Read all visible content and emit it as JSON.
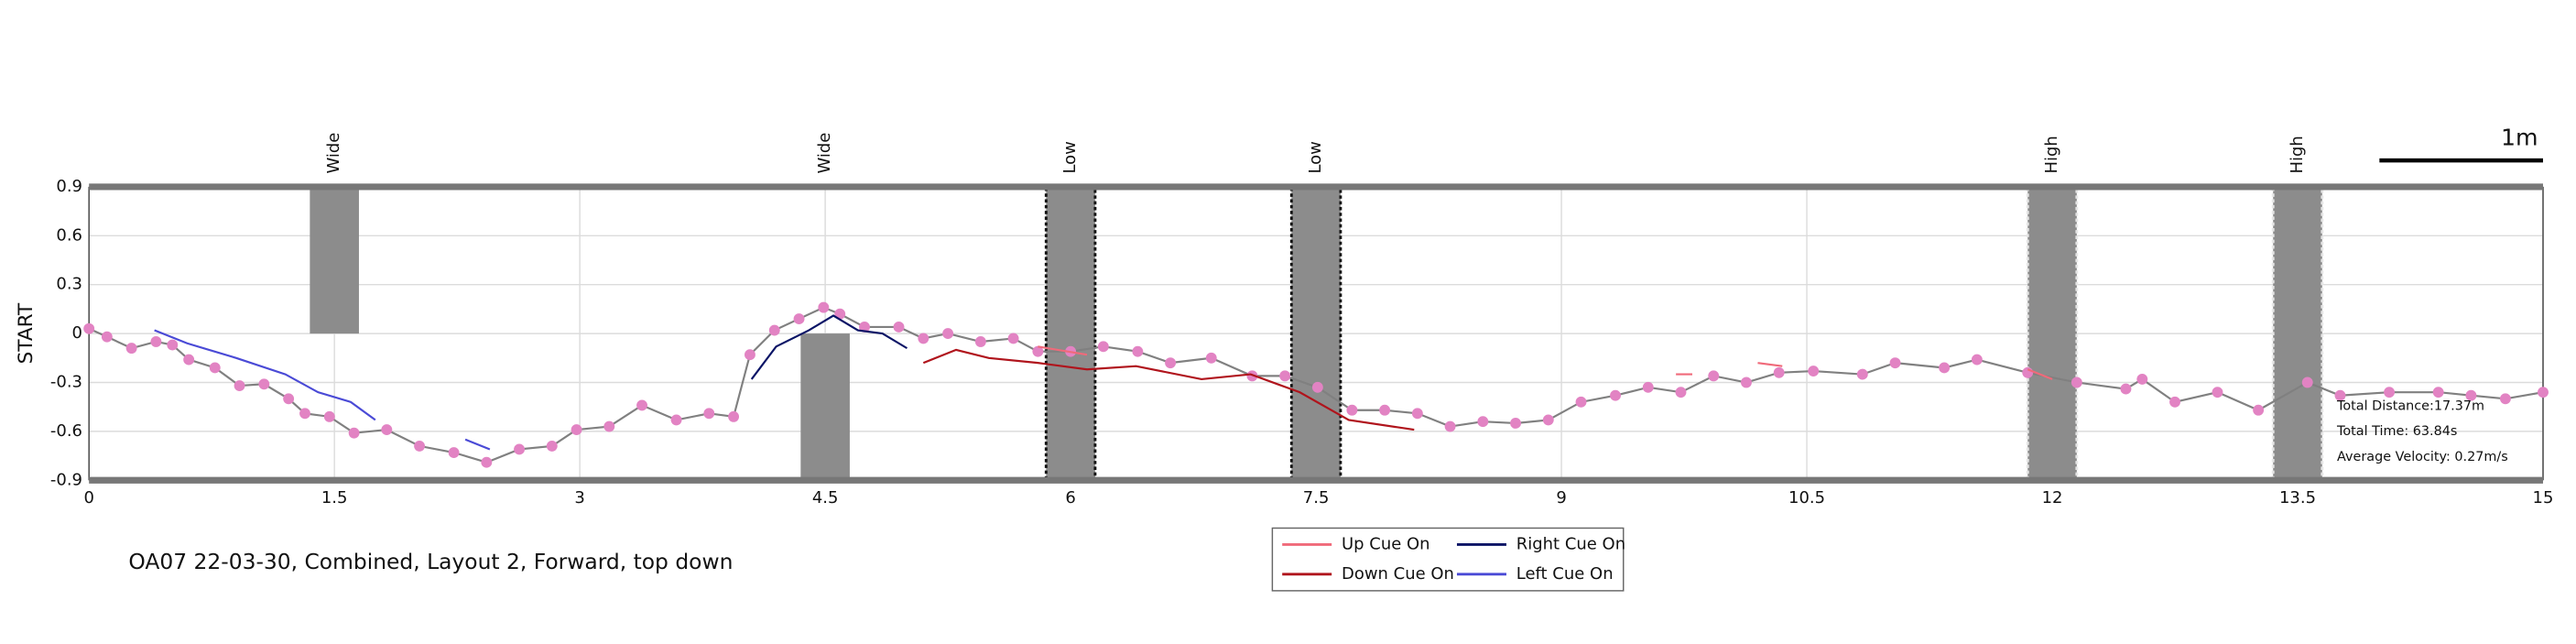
{
  "chart_data": {
    "type": "line",
    "title": "OA07 22-03-30, Combined, Layout 2, Forward, top down",
    "ylabel": "START",
    "xlim": [
      0,
      15
    ],
    "ylim": [
      -0.9,
      0.9
    ],
    "xticks": [
      0,
      1.5,
      3,
      4.5,
      6,
      7.5,
      9,
      10.5,
      12,
      13.5,
      15
    ],
    "yticks": [
      0.9,
      0.6,
      0.3,
      0,
      -0.3,
      -0.6,
      -0.9
    ],
    "grid": true,
    "legend": "bottom",
    "series": [
      {
        "color": "#808080",
        "marker_color": "#e283c3",
        "x": [
          0,
          0.11,
          0.26,
          0.41,
          0.51,
          0.61,
          0.77,
          0.92,
          1.07,
          1.22,
          1.32,
          1.47,
          1.62,
          1.82,
          2.02,
          2.23,
          2.43,
          2.63,
          2.83,
          2.98,
          3.18,
          3.38,
          3.59,
          3.79,
          3.94,
          4.04,
          4.19,
          4.34,
          4.49,
          4.59,
          4.74,
          4.95,
          5.1,
          5.25,
          5.45,
          5.65,
          5.8,
          6,
          6.2,
          6.41,
          6.61,
          6.86,
          7.11,
          7.31,
          7.51,
          7.72,
          7.92,
          8.12,
          8.32,
          8.52,
          8.72,
          8.92,
          9.12,
          9.33,
          9.53,
          9.73,
          9.93,
          10.13,
          10.33,
          10.54,
          10.84,
          11.04,
          11.34,
          11.54,
          11.85,
          12.15,
          12.45,
          12.55,
          12.75,
          13.01,
          13.26,
          13.56,
          13.76,
          14.06,
          14.36,
          14.56,
          14.77,
          15
        ],
        "values": [
          0.03,
          -0.02,
          -0.09,
          -0.05,
          -0.07,
          -0.16,
          -0.21,
          -0.32,
          -0.31,
          -0.4,
          -0.49,
          -0.51,
          -0.61,
          -0.59,
          -0.69,
          -0.73,
          -0.79,
          -0.71,
          -0.69,
          -0.59,
          -0.57,
          -0.44,
          -0.53,
          -0.49,
          -0.51,
          -0.13,
          0.02,
          0.09,
          0.16,
          0.12,
          0.04,
          0.04,
          -0.03,
          0,
          -0.05,
          -0.03,
          -0.11,
          -0.11,
          -0.08,
          -0.11,
          -0.18,
          -0.15,
          -0.26,
          -0.26,
          -0.33,
          -0.47,
          -0.47,
          -0.49,
          -0.57,
          -0.54,
          -0.55,
          -0.53,
          -0.42,
          -0.38,
          -0.33,
          -0.36,
          -0.26,
          -0.3,
          -0.24,
          -0.23,
          -0.25,
          -0.18,
          -0.21,
          -0.16,
          -0.24,
          -0.3,
          -0.34,
          -0.28,
          -0.42,
          -0.36,
          -0.47,
          -0.3,
          -0.38,
          -0.36,
          -0.36,
          -0.38,
          -0.4,
          -0.36
        ]
      },
      {
        "name": "Up Cue On",
        "color": "#f06a7a",
        "x": [
          5.8,
          6.1,
          6.2,
          9.7,
          9.8,
          9.9,
          10.2,
          10.35,
          10.4,
          11.85,
          12.0
        ],
        "values": [
          -0.08,
          -0.13,
          null,
          -0.25,
          -0.25,
          null,
          -0.18,
          -0.2,
          null,
          -0.22,
          -0.28
        ]
      },
      {
        "name": "Down Cue On",
        "color": "#b0141c",
        "x": [
          5.1,
          5.3,
          5.5,
          5.8,
          6.1,
          6.4,
          6.8,
          7.1,
          7.4,
          7.7,
          8.1
        ],
        "values": [
          -0.18,
          -0.1,
          -0.15,
          -0.18,
          -0.22,
          -0.2,
          -0.28,
          -0.25,
          -0.36,
          -0.53,
          -0.59
        ]
      },
      {
        "name": "Right Cue On",
        "color": "#0a1466",
        "x": [
          4.05,
          4.2,
          4.4,
          4.55,
          4.7,
          4.85,
          5.0
        ],
        "values": [
          -0.28,
          -0.08,
          0.02,
          0.11,
          0.02,
          0,
          -0.09
        ]
      },
      {
        "name": "Left Cue On",
        "color": "#4a4ad6",
        "x": [
          0.4,
          0.6,
          0.9,
          1.2,
          1.4,
          1.6,
          1.75,
          2.0,
          2.3,
          2.45
        ],
        "values": [
          0.02,
          -0.06,
          -0.15,
          -0.25,
          -0.36,
          -0.42,
          -0.53,
          null,
          -0.65,
          -0.71
        ]
      }
    ],
    "obstacles": [
      {
        "label": "Wide",
        "x0": 1.35,
        "x1": 1.65,
        "y0": 0,
        "y1": 0.9,
        "color": "#8c8c8c"
      },
      {
        "label": "Wide",
        "x0": 4.35,
        "x1": 4.65,
        "y0": -0.9,
        "y1": 0,
        "color": "#8c8c8c"
      },
      {
        "label": "Low",
        "x0": 5.85,
        "x1": 6.15,
        "y0": -0.9,
        "y1": 0.9,
        "color": "#8c8c8c",
        "edge": "#111111"
      },
      {
        "label": "Low",
        "x0": 7.35,
        "x1": 7.65,
        "y0": -0.9,
        "y1": 0.9,
        "color": "#8c8c8c",
        "edge": "#111111"
      },
      {
        "label": "High",
        "x0": 11.85,
        "x1": 12.15,
        "y0": -0.9,
        "y1": 0.9,
        "color": "#8c8c8c",
        "edge": "#e6e6e6"
      },
      {
        "label": "High",
        "x0": 13.35,
        "x1": 13.65,
        "y0": -0.9,
        "y1": 0.9,
        "color": "#8c8c8c",
        "edge": "#e6e6e6"
      }
    ],
    "scale_bar": {
      "label": "1m",
      "length": 1
    },
    "stats": [
      "Total Distance:17.37m",
      "Total Time: 63.84s",
      "Average Velocity: 0.27m/s"
    ]
  }
}
